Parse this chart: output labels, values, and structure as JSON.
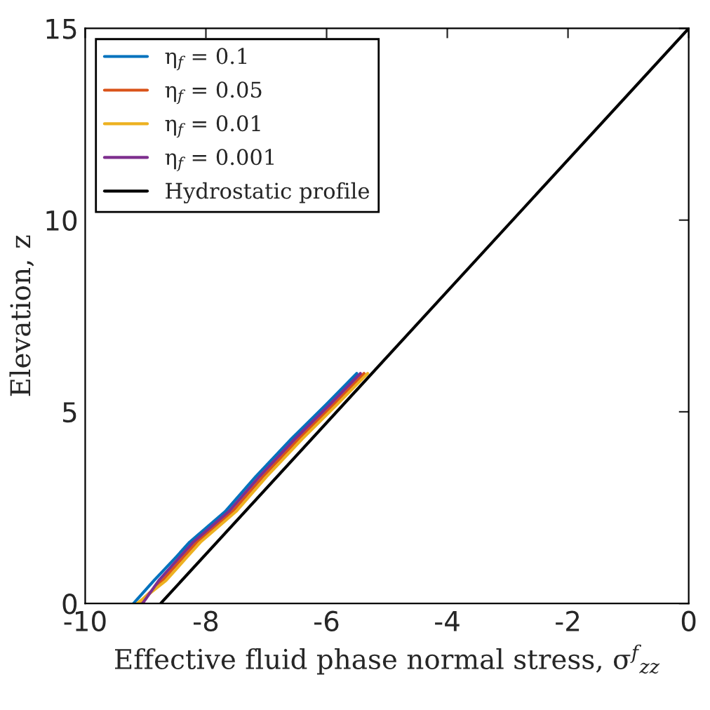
{
  "chart_data": {
    "type": "line",
    "xlabel": "Effective fluid phase normal stress, σ$^{f}$$_{zz}$",
    "ylabel": "Elevation, $_{}$z",
    "xlim": [
      -10,
      0
    ],
    "xticks": [
      -10,
      -8,
      -6,
      -4,
      -2,
      0
    ],
    "ylim": [
      0,
      15
    ],
    "yticks": [
      0,
      5,
      10,
      15
    ],
    "grid": false,
    "legend": "top left",
    "line_style": "solid",
    "marker": "none",
    "series": [
      {
        "name": "η$_{f}$ = 0.1",
        "color": "#0072bd",
        "x": [
          -9.2,
          -8.86,
          -8.5,
          -8.27,
          -7.68,
          -7.18,
          -6.58,
          -6.0,
          -5.5
        ],
        "values": [
          0,
          0.6,
          1.2,
          1.6,
          2.4,
          3.3,
          4.3,
          5.2,
          6.0
        ]
      },
      {
        "name": "η$_{f}$ = 0.05",
        "color": "#d95319",
        "x": [
          -9.12,
          -8.72,
          -8.38,
          -8.15,
          -7.56,
          -7.06,
          -6.46,
          -5.88,
          -5.38
        ],
        "values": [
          0,
          0.6,
          1.2,
          1.6,
          2.4,
          3.3,
          4.3,
          5.2,
          6.0
        ]
      },
      {
        "name": "η$_{f}$ = 0.01",
        "color": "#edb120",
        "x": [
          -9.14,
          -8.66,
          -8.32,
          -8.09,
          -7.5,
          -7.0,
          -6.4,
          -5.82,
          -5.32
        ],
        "values": [
          0,
          0.6,
          1.2,
          1.6,
          2.4,
          3.3,
          4.3,
          5.2,
          6.0
        ]
      },
      {
        "name": "η$_{f}$ = 0.001",
        "color": "#7e2f8e",
        "x": [
          -9.05,
          -8.78,
          -8.44,
          -8.21,
          -7.62,
          -7.12,
          -6.52,
          -5.94,
          -5.44
        ],
        "values": [
          0,
          0.6,
          1.2,
          1.6,
          2.4,
          3.3,
          4.3,
          5.2,
          6.0
        ]
      },
      {
        "name": "Hydrostatic profile",
        "color": "#000000",
        "x": [
          -8.75,
          0
        ],
        "values": [
          0,
          15
        ]
      }
    ]
  }
}
